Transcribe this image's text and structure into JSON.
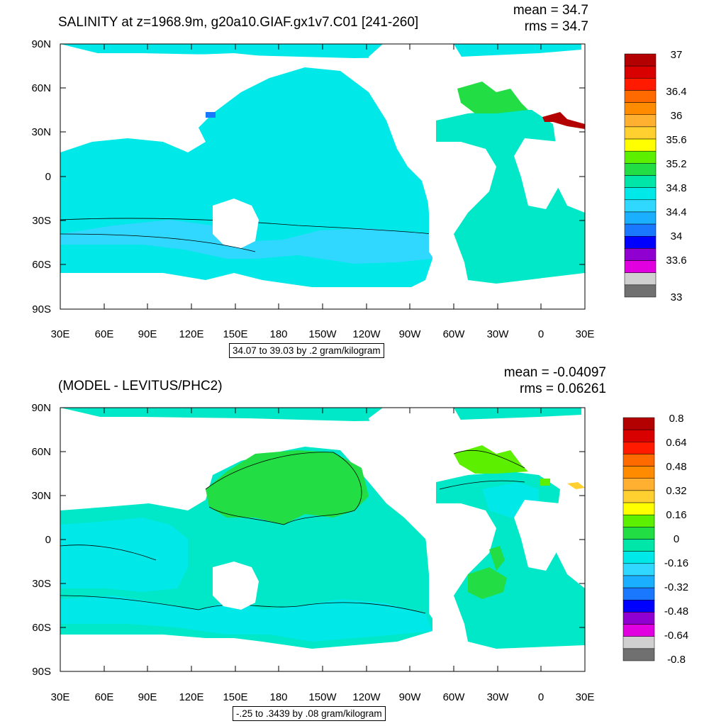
{
  "panels": [
    {
      "title": "SALINITY at z=1968.9m, g20a10.GIAF.gx1v7.C01 [241-260]",
      "mean_label": "mean = 34.7",
      "rms_label": "rms = 34.7",
      "lat_labels": [
        "90N",
        "60N",
        "30N",
        "0",
        "30S",
        "60S",
        "90S"
      ],
      "lon_labels": [
        "30E",
        "60E",
        "90E",
        "120E",
        "150E",
        "180",
        "150W",
        "120W",
        "90W",
        "60W",
        "30W",
        "0",
        "30E"
      ],
      "range_label": "34.07 to 39.03 by .2 gram/kilogram",
      "colorbar": {
        "labels": [
          "37",
          "36.4",
          "36",
          "35.6",
          "35.2",
          "34.8",
          "34.4",
          "34",
          "33.6",
          "33"
        ],
        "colors": [
          "#b30000",
          "#d90000",
          "#ff1a00",
          "#ff6a00",
          "#ff8c00",
          "#ffb030",
          "#ffd030",
          "#ffff00",
          "#5cf000",
          "#22dd44",
          "#00e6a8",
          "#00e8e8",
          "#30d8ff",
          "#1ab0ff",
          "#1a78ff",
          "#0000ff",
          "#9000d0",
          "#e000e0",
          "#d0d0d0",
          "#707070"
        ]
      }
    },
    {
      "title": "(MODEL - LEVITUS/PHC2)",
      "mean_label": "mean = -0.04097",
      "rms_label": "rms = 0.06261",
      "lat_labels": [
        "90N",
        "60N",
        "30N",
        "0",
        "30S",
        "60S",
        "90S"
      ],
      "lon_labels": [
        "30E",
        "60E",
        "90E",
        "120E",
        "150E",
        "180",
        "150W",
        "120W",
        "90W",
        "60W",
        "30W",
        "0",
        "30E"
      ],
      "range_label": "-.25 to .3439 by .08 gram/kilogram",
      "colorbar": {
        "labels": [
          "0.8",
          "0.64",
          "0.48",
          "0.32",
          "0.16",
          "0",
          "-0.16",
          "-0.32",
          "-0.48",
          "-0.64",
          "-0.8"
        ],
        "colors": [
          "#b30000",
          "#d90000",
          "#ff1a00",
          "#ff6a00",
          "#ff8c00",
          "#ffb030",
          "#ffd030",
          "#ffff00",
          "#5cf000",
          "#22dd44",
          "#00e6a8",
          "#00e8e8",
          "#30d8ff",
          "#1ab0ff",
          "#1a78ff",
          "#0000ff",
          "#9000d0",
          "#e000e0",
          "#d0d0d0",
          "#707070"
        ]
      }
    }
  ],
  "map_colors": {
    "ocean_main": "#00e8c8",
    "ocean_low": "#00e8e8",
    "ocean_lower": "#30d8ff",
    "ocean_green": "#22dd44",
    "ocean_lime": "#5cf000",
    "high_salinity": "#b30000",
    "land": "#ffffff"
  }
}
